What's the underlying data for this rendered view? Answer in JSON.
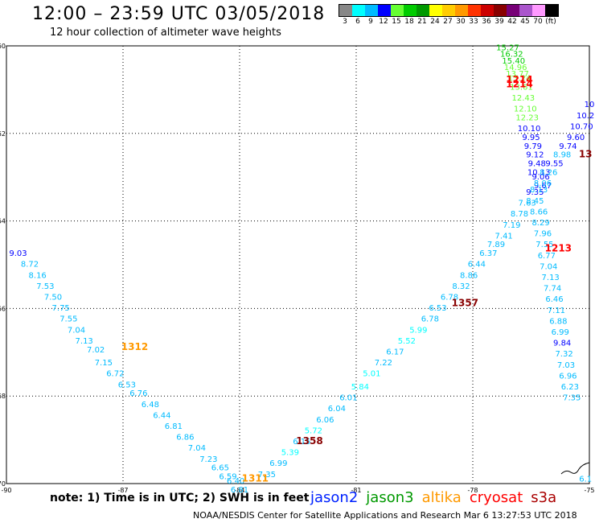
{
  "title": "12:00 – 23:59 UTC 03/05/2018",
  "subtitle": "12 hour collection of altimeter wave heights",
  "note": "note:  1) Time is in UTC;  2) SWH is in feet",
  "credit": "NOAA/NESDIS Center for Satellite Applications and Research    Mar  6 13:27:53 UTC 2018",
  "legend": [
    {
      "label": "jason2",
      "color": "#0022ff"
    },
    {
      "label": "jason3",
      "color": "#009900"
    },
    {
      "label": "altika",
      "color": "#ff9900"
    },
    {
      "label": "cryosat",
      "color": "#ff0000"
    },
    {
      "label": "s3a",
      "color": "#aa0000"
    }
  ],
  "colorbar": {
    "colors": [
      "#888888",
      "#00ffff",
      "#00bbff",
      "#0000ff",
      "#66ff33",
      "#00cc00",
      "#009900",
      "#ffff00",
      "#ffcc00",
      "#ff9900",
      "#ff3300",
      "#cc0000",
      "#880000",
      "#770077",
      "#aa55cc",
      "#ff99ff",
      "#000000"
    ],
    "labels": [
      "3",
      "6",
      "9",
      "12",
      "15",
      "18",
      "21",
      "24",
      "27",
      "30",
      "33",
      "36",
      "39",
      "42",
      "45",
      "70",
      "(ft)"
    ]
  },
  "chart_data": {
    "type": "scatter",
    "xlabel": "",
    "ylabel": "",
    "xlim": [
      -90,
      -75
    ],
    "ylim": [
      -70,
      -60
    ],
    "xticks": [
      "-90",
      "-87",
      "-84",
      "-81",
      "-78",
      "-75"
    ],
    "yticks": [
      "-60",
      "-62",
      "-64",
      "-66",
      "-68",
      "-70"
    ],
    "grid": true,
    "time_labels": [
      {
        "text": "1312",
        "lon": -86.7,
        "lat": -66.95,
        "color": "#ff9900"
      },
      {
        "text": "1311",
        "lon": -83.6,
        "lat": -69.95,
        "color": "#ff9900"
      },
      {
        "text": "1358",
        "lon": -82.2,
        "lat": -69.1,
        "color": "#880000"
      },
      {
        "text": "1357",
        "lon": -78.2,
        "lat": -65.95,
        "color": "#880000"
      },
      {
        "text": "1214",
        "lon": -76.8,
        "lat": -60.85,
        "color": "#ff0000"
      },
      {
        "text": "1214",
        "lon": -76.8,
        "lat": -60.95,
        "color": "#ff0000"
      },
      {
        "text": "1213",
        "lon": -75.8,
        "lat": -64.7,
        "color": "#ff0000"
      },
      {
        "text": "13",
        "lon": -75.1,
        "lat": -62.55,
        "color": "#880000"
      }
    ],
    "series": [
      {
        "points": [
          [
            -89.7,
            -64.8,
            "9.03"
          ],
          [
            -89.4,
            -65.05,
            "8.72"
          ],
          [
            -89.2,
            -65.3,
            "8.16"
          ],
          [
            -89.0,
            -65.55,
            "7.53"
          ],
          [
            -88.8,
            -65.8,
            "7.50"
          ],
          [
            -88.6,
            -66.05,
            "7.75"
          ],
          [
            -88.4,
            -66.3,
            "7.55"
          ],
          [
            -88.2,
            -66.55,
            "7.04"
          ],
          [
            -88.0,
            -66.8,
            "7.13"
          ],
          [
            -87.7,
            -67.0,
            "7.02"
          ],
          [
            -87.5,
            -67.3,
            "7.15"
          ],
          [
            -87.2,
            -67.55,
            "6.72"
          ],
          [
            -86.9,
            -67.8,
            "6.53"
          ],
          [
            -86.6,
            -68.0,
            "6.76"
          ],
          [
            -86.3,
            -68.25,
            "6.48"
          ],
          [
            -86.0,
            -68.5,
            "6.44"
          ],
          [
            -85.7,
            -68.75,
            "6.81"
          ],
          [
            -85.4,
            -69.0,
            "6.86"
          ],
          [
            -85.1,
            -69.25,
            "7.04"
          ],
          [
            -84.8,
            -69.5,
            "7.23"
          ],
          [
            -84.5,
            -69.7,
            "6.65"
          ],
          [
            -84.3,
            -69.9,
            "6.59"
          ],
          [
            -84.1,
            -70.0,
            "6.40"
          ],
          [
            -84.0,
            -70.2,
            "6.81"
          ]
        ]
      },
      {
        "points": [
          [
            -83.3,
            -69.85,
            "7.35"
          ],
          [
            -83.0,
            -69.6,
            "6.99"
          ],
          [
            -82.7,
            -69.35,
            "5.39"
          ],
          [
            -82.4,
            -69.1,
            "6.15"
          ],
          [
            -82.1,
            -68.85,
            "5.72"
          ],
          [
            -81.8,
            -68.6,
            "6.06"
          ],
          [
            -81.5,
            -68.35,
            "6.04"
          ],
          [
            -81.2,
            -68.1,
            "6.01"
          ],
          [
            -80.9,
            -67.85,
            "5.84"
          ],
          [
            -80.6,
            -67.55,
            "5.01"
          ],
          [
            -80.3,
            -67.3,
            "7.22"
          ],
          [
            -80.0,
            -67.05,
            "6.17"
          ],
          [
            -79.7,
            -66.8,
            "5.52"
          ],
          [
            -79.4,
            -66.55,
            "5.99"
          ],
          [
            -79.1,
            -66.3,
            "6.78"
          ],
          [
            -78.9,
            -66.05,
            "6.53"
          ],
          [
            -78.6,
            -65.8,
            "6.78"
          ],
          [
            -78.3,
            -65.55,
            "8.32"
          ],
          [
            -78.1,
            -65.3,
            "8.86"
          ],
          [
            -77.9,
            -65.05,
            "6.44"
          ],
          [
            -77.6,
            -64.8,
            "6.37"
          ],
          [
            -77.4,
            -64.6,
            "7.89"
          ],
          [
            -77.2,
            -64.4,
            "7.41"
          ],
          [
            -77.0,
            -64.15,
            "7.19"
          ],
          [
            -76.8,
            -63.9,
            "8.78"
          ],
          [
            -76.6,
            -63.65,
            "7.63"
          ],
          [
            -76.4,
            -63.4,
            "9.35"
          ]
        ]
      },
      {
        "points": [
          [
            -77.1,
            -60.1,
            "15.27"
          ],
          [
            -77.0,
            -60.25,
            "16.32"
          ],
          [
            -76.95,
            -60.4,
            "15.40"
          ],
          [
            -76.9,
            -60.55,
            "14.96"
          ],
          [
            -76.85,
            -60.7,
            "13.77"
          ],
          [
            -76.8,
            -60.8,
            "13.24"
          ],
          [
            -76.75,
            -61.0,
            "13.61"
          ],
          [
            -76.7,
            -61.25,
            "12.43"
          ],
          [
            -76.65,
            -61.5,
            "12.10"
          ],
          [
            -76.6,
            -61.7,
            "12.23"
          ],
          [
            -76.55,
            -61.95,
            "10.10"
          ],
          [
            -76.5,
            -62.15,
            "9.95"
          ],
          [
            -76.45,
            -62.35,
            "9.79"
          ],
          [
            -76.4,
            -62.55,
            "9.12"
          ],
          [
            -76.35,
            -62.75,
            "9.48"
          ],
          [
            -76.3,
            -62.95,
            "10.13"
          ],
          [
            -76.25,
            -63.05,
            "9.06"
          ],
          [
            -76.2,
            -63.25,
            "9.67"
          ]
        ]
      },
      {
        "points": [
          [
            -75.0,
            -61.4,
            "10"
          ],
          [
            -75.1,
            -61.65,
            "10.2"
          ],
          [
            -75.2,
            -61.9,
            "10.70"
          ],
          [
            -75.35,
            -62.15,
            "9.60"
          ],
          [
            -75.55,
            -62.35,
            "9.74"
          ],
          [
            -75.7,
            -62.55,
            "8.98"
          ],
          [
            -75.9,
            -62.75,
            "9.55"
          ],
          [
            -76.05,
            -62.95,
            "8.26"
          ],
          [
            -76.2,
            -63.2,
            "8.06"
          ],
          [
            -76.3,
            -63.35,
            "8.13"
          ],
          [
            -76.4,
            -63.6,
            "8.45"
          ],
          [
            -76.3,
            -63.85,
            "8.66"
          ],
          [
            -76.25,
            -64.1,
            "8.29"
          ],
          [
            -76.2,
            -64.35,
            "7.96"
          ],
          [
            -76.15,
            -64.6,
            "7.55"
          ],
          [
            -76.1,
            -64.85,
            "6.77"
          ],
          [
            -76.05,
            -65.1,
            "7.04"
          ],
          [
            -76.0,
            -65.35,
            "7.13"
          ],
          [
            -75.95,
            -65.6,
            "7.74"
          ],
          [
            -75.9,
            -65.85,
            "6.46"
          ],
          [
            -75.85,
            -66.1,
            "7.11"
          ],
          [
            -75.8,
            -66.35,
            "6.88"
          ],
          [
            -75.75,
            -66.6,
            "6.99"
          ],
          [
            -75.7,
            -66.85,
            "9.84"
          ],
          [
            -75.65,
            -67.1,
            "7.32"
          ],
          [
            -75.6,
            -67.35,
            "7.03"
          ],
          [
            -75.55,
            -67.6,
            "6.96"
          ],
          [
            -75.5,
            -67.85,
            "6.23"
          ],
          [
            -75.45,
            -68.1,
            "7.35"
          ],
          [
            -75.1,
            -69.95,
            "6.1"
          ]
        ]
      }
    ]
  }
}
